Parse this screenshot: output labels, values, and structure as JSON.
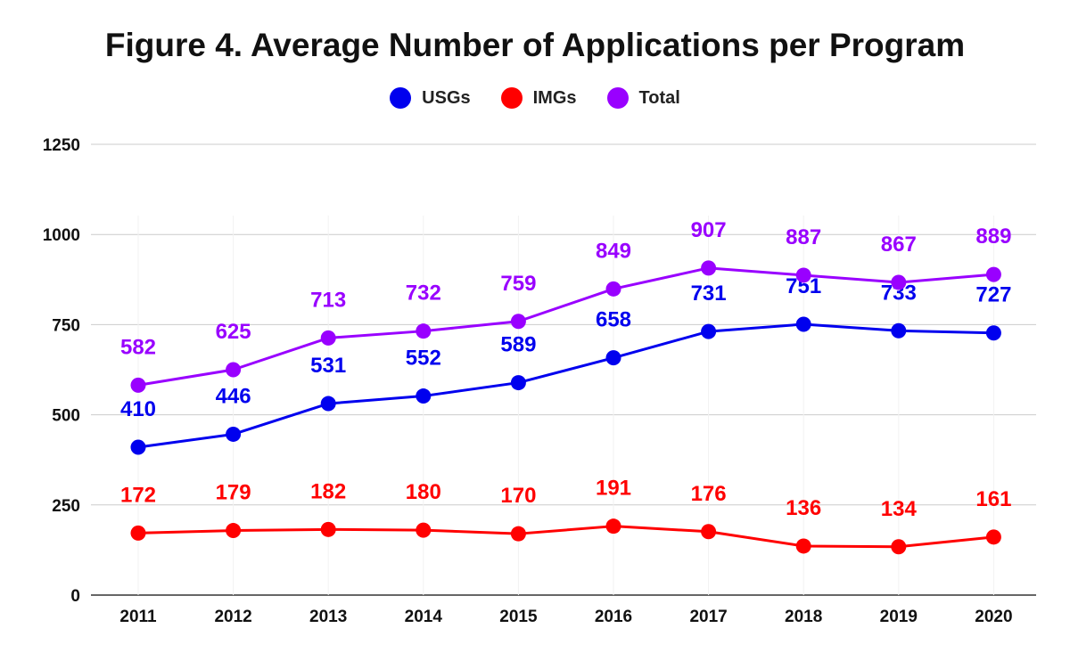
{
  "chart_data": {
    "type": "line",
    "title": "Figure 4. Average Number of Applications per Program",
    "xlabel": "",
    "ylabel": "",
    "ylim": [
      0,
      1250
    ],
    "yticks": [
      0,
      250,
      500,
      750,
      1000,
      1250
    ],
    "categories": [
      "2011",
      "2012",
      "2013",
      "2014",
      "2015",
      "2016",
      "2017",
      "2018",
      "2019",
      "2020"
    ],
    "grid": true,
    "legend_position": "top-center",
    "series": [
      {
        "name": "USGs",
        "color": "#0000ee",
        "values": [
          410,
          446,
          531,
          552,
          589,
          658,
          731,
          751,
          733,
          727
        ]
      },
      {
        "name": "IMGs",
        "color": "#ff0000",
        "values": [
          172,
          179,
          182,
          180,
          170,
          191,
          176,
          136,
          134,
          161
        ]
      },
      {
        "name": "Total",
        "color": "#9900ff",
        "values": [
          582,
          625,
          713,
          732,
          759,
          849,
          907,
          887,
          867,
          889
        ]
      }
    ]
  }
}
